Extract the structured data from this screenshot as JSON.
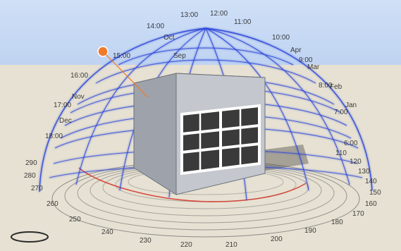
{
  "viewport": {
    "description": "",
    "colors": {
      "sky": "#c9dbf3",
      "ground": "#e6e1d2",
      "dome_lines": "#2a43d8",
      "dome_glow": "#98a6ff",
      "base_rings": "#7a7a7a",
      "sun_path": "#d63a2f",
      "sun": "#f07a2a",
      "box_front": "#c4c7cd",
      "box_side": "#9ea3ab",
      "box_top": "#e1e4ea",
      "window": "#2e2e2e",
      "frame": "#ffffff"
    },
    "dome_labels": {
      "hours_top": [
        "13:00",
        "12:00",
        "11:00",
        "14:00",
        "10:00",
        "15:00",
        "9:00",
        "16:00",
        "8:00",
        "17:00",
        "7:00",
        "18:00",
        "6:00"
      ],
      "months": [
        "Oct",
        "Sep",
        "Apr",
        "Mar",
        "Feb",
        "Jan",
        "Nov",
        "Dec"
      ],
      "misc": [
        "16:00",
        "140",
        "150",
        "160",
        "170",
        "180",
        "190",
        "200",
        "210",
        "220",
        "230",
        "240",
        "250",
        "260",
        "270",
        "280",
        "290",
        "110",
        "120",
        "130"
      ]
    },
    "compass_labels": [
      "120",
      "130",
      "140",
      "150",
      "160",
      "170",
      "180",
      "190",
      "200",
      "210",
      "220",
      "230",
      "240",
      "250",
      "260",
      "270",
      "280",
      "290",
      "110"
    ],
    "bottom_left_hint": ""
  }
}
